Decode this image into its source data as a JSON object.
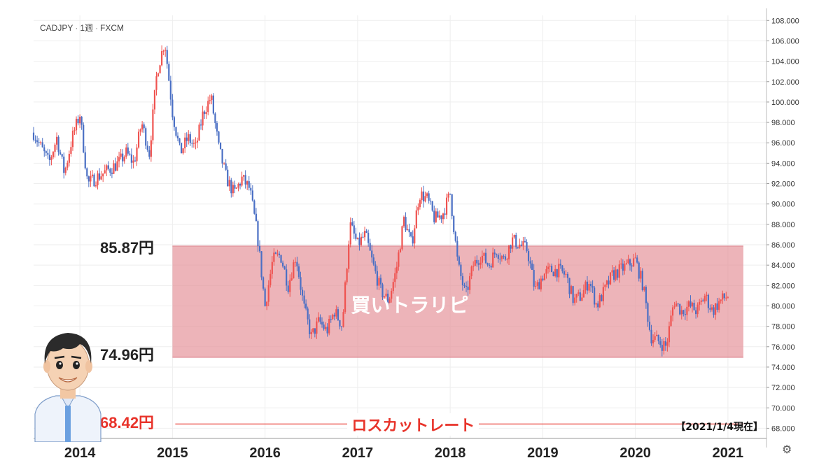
{
  "header": {
    "symbol": "CADJPY",
    "timeframe": "1週",
    "source": "FXCM"
  },
  "annotations": {
    "upper_label": "85.87円",
    "lower_label": "74.96円",
    "zone_label": "買いトラリピ",
    "stop_label": "68.42円",
    "stop_name": "ロスカットレート",
    "date_note": "【2021/1/4現在】"
  },
  "colors": {
    "up": "#ef5350",
    "down": "#4a6fc4",
    "zone": "#e6949b",
    "stop": "#e8332a",
    "grid": "#eeeeee"
  },
  "icons": {
    "settings": "gear-icon"
  },
  "chart_data": {
    "type": "candlestick",
    "ylim": [
      67,
      108.5
    ],
    "yticks": [
      "108.000",
      "106.000",
      "104.000",
      "102.000",
      "100.000",
      "98.000",
      "96.000",
      "94.000",
      "92.000",
      "90.000",
      "88.000",
      "86.000",
      "84.000",
      "82.000",
      "80.000",
      "78.000",
      "76.000",
      "74.000",
      "72.000",
      "70.000",
      "68.000"
    ],
    "xticks": [
      "2014",
      "2015",
      "2016",
      "2017",
      "2018",
      "2019",
      "2020",
      "2021"
    ],
    "xrange": [
      "2013-07",
      "2021-06"
    ],
    "zone": {
      "upper": 85.87,
      "lower": 74.96,
      "from": "2015-01",
      "to": "2021-03"
    },
    "stop_line": {
      "value": 68.42
    },
    "series": [
      {
        "values": [
          [
            "2013-07",
            97.0
          ],
          [
            "2013-09",
            94.0
          ],
          [
            "2013-10",
            96.5
          ],
          [
            "2013-11",
            93.0
          ],
          [
            "2013-12",
            96.5
          ],
          [
            "2014-01",
            98.8
          ],
          [
            "2014-02",
            92.0
          ],
          [
            "2014-04",
            93.0
          ],
          [
            "2014-06",
            94.0
          ],
          [
            "2014-07",
            95.0
          ],
          [
            "2014-08",
            94.0
          ],
          [
            "2014-09",
            98.0
          ],
          [
            "2014-10",
            95.0
          ],
          [
            "2014-11",
            103.0
          ],
          [
            "2014-12",
            106.0
          ],
          [
            "2015-01",
            99.0
          ],
          [
            "2015-02",
            95.0
          ],
          [
            "2015-03",
            96.5
          ],
          [
            "2015-04",
            95.5
          ],
          [
            "2015-05",
            99.0
          ],
          [
            "2015-06",
            100.5
          ],
          [
            "2015-07",
            95.5
          ],
          [
            "2015-08",
            92.5
          ],
          [
            "2015-09",
            91.0
          ],
          [
            "2015-10",
            92.5
          ],
          [
            "2015-11",
            91.5
          ],
          [
            "2015-12",
            87.0
          ],
          [
            "2016-01",
            80.0
          ],
          [
            "2016-02",
            84.5
          ],
          [
            "2016-03",
            85.0
          ],
          [
            "2016-04",
            82.0
          ],
          [
            "2016-05",
            85.0
          ],
          [
            "2016-06",
            80.0
          ],
          [
            "2016-07",
            77.0
          ],
          [
            "2016-08",
            78.5
          ],
          [
            "2016-09",
            77.5
          ],
          [
            "2016-10",
            79.5
          ],
          [
            "2016-11",
            78.0
          ],
          [
            "2016-12",
            88.0
          ],
          [
            "2017-01",
            86.0
          ],
          [
            "2017-02",
            87.0
          ],
          [
            "2017-03",
            84.0
          ],
          [
            "2017-04",
            81.5
          ],
          [
            "2017-05",
            80.5
          ],
          [
            "2017-06",
            83.5
          ],
          [
            "2017-07",
            88.5
          ],
          [
            "2017-08",
            86.0
          ],
          [
            "2017-09",
            91.0
          ],
          [
            "2017-10",
            90.5
          ],
          [
            "2017-11",
            88.5
          ],
          [
            "2017-12",
            89.0
          ],
          [
            "2018-01",
            91.0
          ],
          [
            "2018-02",
            84.0
          ],
          [
            "2018-03",
            81.0
          ],
          [
            "2018-04",
            84.0
          ],
          [
            "2018-05",
            85.0
          ],
          [
            "2018-06",
            84.0
          ],
          [
            "2018-07",
            85.5
          ],
          [
            "2018-08",
            84.5
          ],
          [
            "2018-09",
            86.5
          ],
          [
            "2018-10",
            86.0
          ],
          [
            "2018-11",
            85.5
          ],
          [
            "2018-12",
            81.5
          ],
          [
            "2019-01",
            83.0
          ],
          [
            "2019-02",
            83.5
          ],
          [
            "2019-03",
            83.5
          ],
          [
            "2019-04",
            83.0
          ],
          [
            "2019-05",
            80.5
          ],
          [
            "2019-06",
            81.0
          ],
          [
            "2019-07",
            82.5
          ],
          [
            "2019-08",
            80.0
          ],
          [
            "2019-09",
            81.5
          ],
          [
            "2019-10",
            83.0
          ],
          [
            "2019-11",
            83.5
          ],
          [
            "2019-12",
            84.0
          ],
          [
            "2020-01",
            84.5
          ],
          [
            "2020-02",
            82.0
          ],
          [
            "2020-03",
            77.0
          ],
          [
            "2020-04",
            76.5
          ],
          [
            "2020-05",
            76.0
          ],
          [
            "2020-06",
            80.5
          ],
          [
            "2020-07",
            79.5
          ],
          [
            "2020-08",
            80.0
          ],
          [
            "2020-09",
            79.5
          ],
          [
            "2020-10",
            81.0
          ],
          [
            "2020-11",
            79.5
          ],
          [
            "2020-12",
            80.5
          ],
          [
            "2021-01",
            81.0
          ]
        ]
      }
    ]
  }
}
